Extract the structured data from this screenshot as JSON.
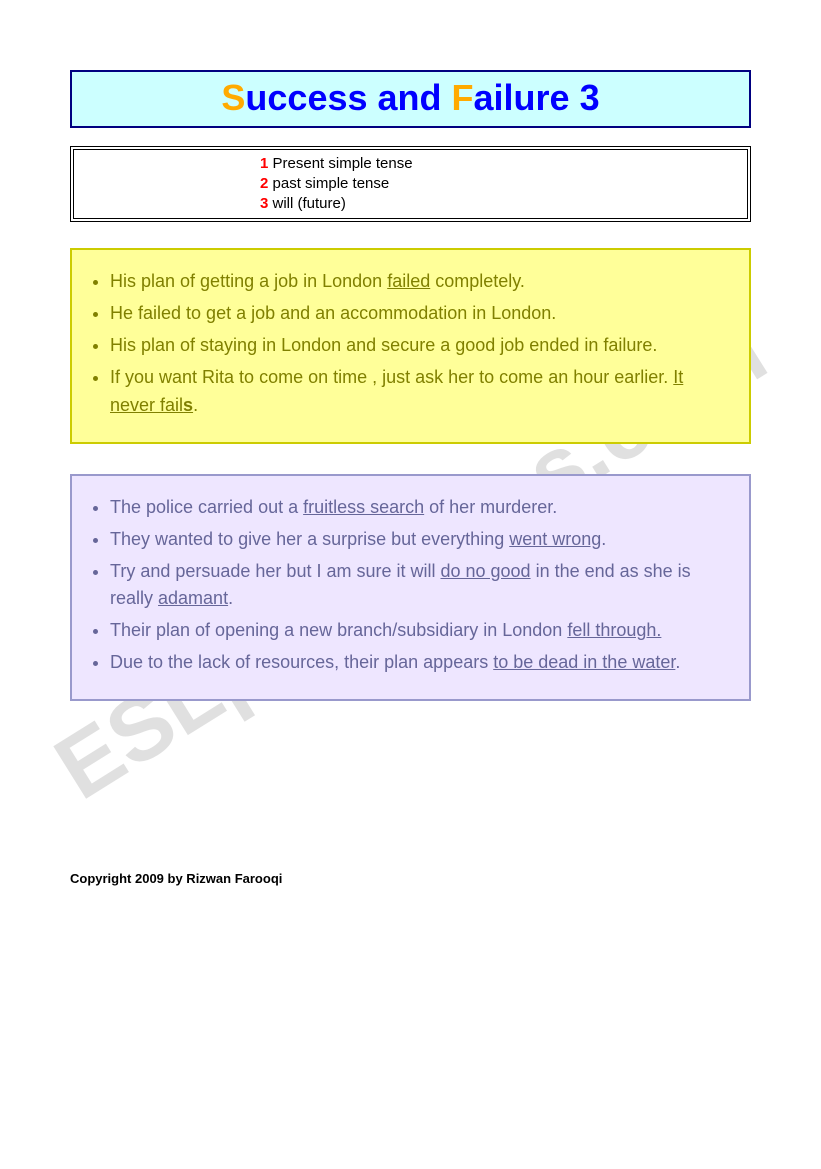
{
  "title": {
    "parts": [
      {
        "text": "S",
        "color": "#ffaa00"
      },
      {
        "text": "uccess and ",
        "color": "#0000ff"
      },
      {
        "text": "F",
        "color": "#ffaa00"
      },
      {
        "text": "ailure  ",
        "color": "#0000ff"
      },
      {
        "text": "3",
        "color": "#0000ff"
      }
    ],
    "box_bg": "#ccffff",
    "box_border": "#000080"
  },
  "legend": {
    "items": [
      {
        "num": "1",
        "text": " Present simple tense"
      },
      {
        "num": "2",
        "text": "  past simple tense"
      },
      {
        "num": "3",
        "text": "  will (future)"
      }
    ],
    "num_color": "#ff0000",
    "text_color": "#000000"
  },
  "blocks": [
    {
      "bg": "#ffff99",
      "border": "#cccc00",
      "text_color": "#808000",
      "items": [
        [
          {
            "t": "His plan of getting a job in London "
          },
          {
            "t": "failed",
            "u": true
          },
          {
            "t": " completely."
          }
        ],
        [
          {
            "t": "He failed to get a job and an accommodation in London."
          }
        ],
        [
          {
            "t": "His plan of staying in London and secure a good job ended in failure."
          }
        ],
        [
          {
            "t": "If you want Rita to come on time , just ask her to come an hour earlier. "
          },
          {
            "t": "It never fail",
            "u": true
          },
          {
            "t": "s",
            "u": true,
            "b": true
          },
          {
            "t": "."
          }
        ]
      ]
    },
    {
      "bg": "#eee6ff",
      "border": "#9999cc",
      "text_color": "#666699",
      "items": [
        [
          {
            "t": "The police carried out a "
          },
          {
            "t": "fruitless search",
            "u": true
          },
          {
            "t": " of her murderer."
          }
        ],
        [
          {
            "t": "They wanted to give her a surprise but everything "
          },
          {
            "t": "went wrong",
            "u": true
          },
          {
            "t": "."
          }
        ],
        [
          {
            "t": "Try and persuade her but I am sure it will "
          },
          {
            "t": "do no good",
            "u": true
          },
          {
            "t": " in the end as she is really "
          },
          {
            "t": "adamant",
            "u": true
          },
          {
            "t": "."
          }
        ],
        [
          {
            "t": "Their plan of opening a new branch/subsidiary in London "
          },
          {
            "t": "fell through.",
            "u": true
          }
        ],
        [
          {
            "t": "Due to the lack of resources, their plan appears "
          },
          {
            "t": "to be dead in the water",
            "u": true
          },
          {
            "t": "."
          }
        ]
      ]
    }
  ],
  "copyright": "Copyright  2009 by Rizwan Farooqi",
  "watermark": "ESLprintables.com"
}
